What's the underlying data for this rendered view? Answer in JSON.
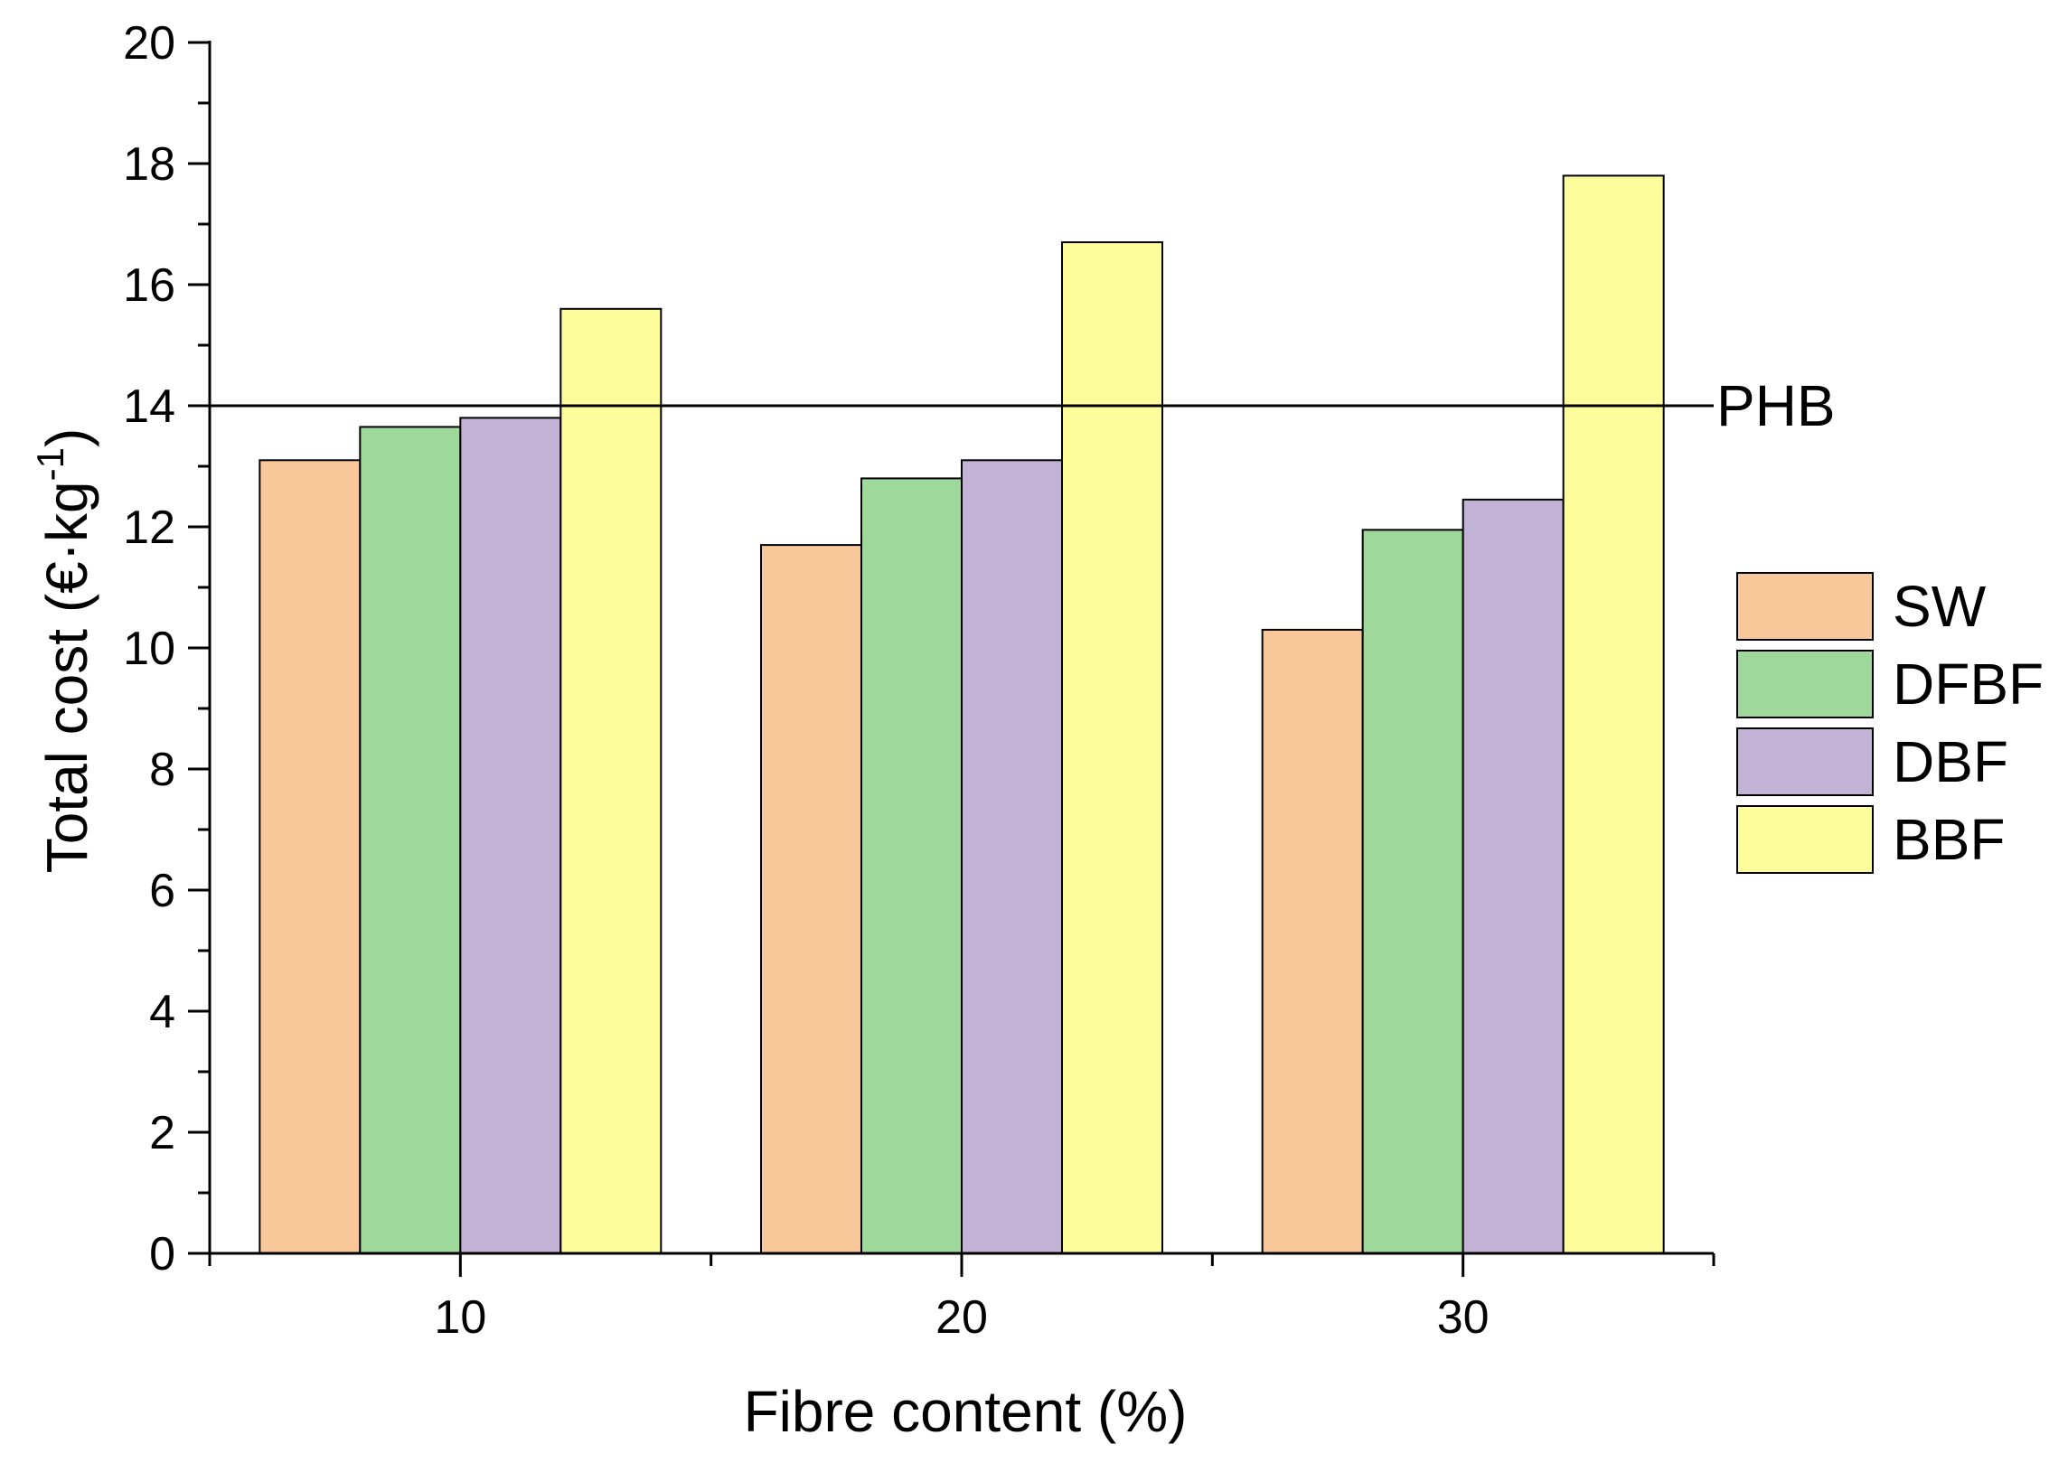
{
  "chart_data": {
    "type": "bar",
    "categories": [
      "10",
      "20",
      "30"
    ],
    "series": [
      {
        "name": "SW",
        "values": [
          13.1,
          11.7,
          10.3
        ],
        "color": "#f9c89a"
      },
      {
        "name": "DFBF",
        "values": [
          13.65,
          12.8,
          11.95
        ],
        "color": "#9fd89b"
      },
      {
        "name": "DBF",
        "values": [
          13.8,
          13.1,
          12.45
        ],
        "color": "#c2b2d6"
      },
      {
        "name": "BBF",
        "values": [
          15.6,
          16.7,
          17.8
        ],
        "color": "#fdfd9c"
      }
    ],
    "reference_line": {
      "label": "PHB",
      "value": 14
    },
    "xlabel": "Fibre content (%)",
    "ylabel_main": "Total cost (€·kg",
    "ylabel_sup": "-1",
    "ylabel_close": ")",
    "ylim": [
      0,
      20
    ],
    "yticks": [
      "0",
      "2",
      "4",
      "6",
      "8",
      "10",
      "12",
      "14",
      "16",
      "18",
      "20"
    ],
    "grid": false,
    "legend_position": "right"
  }
}
